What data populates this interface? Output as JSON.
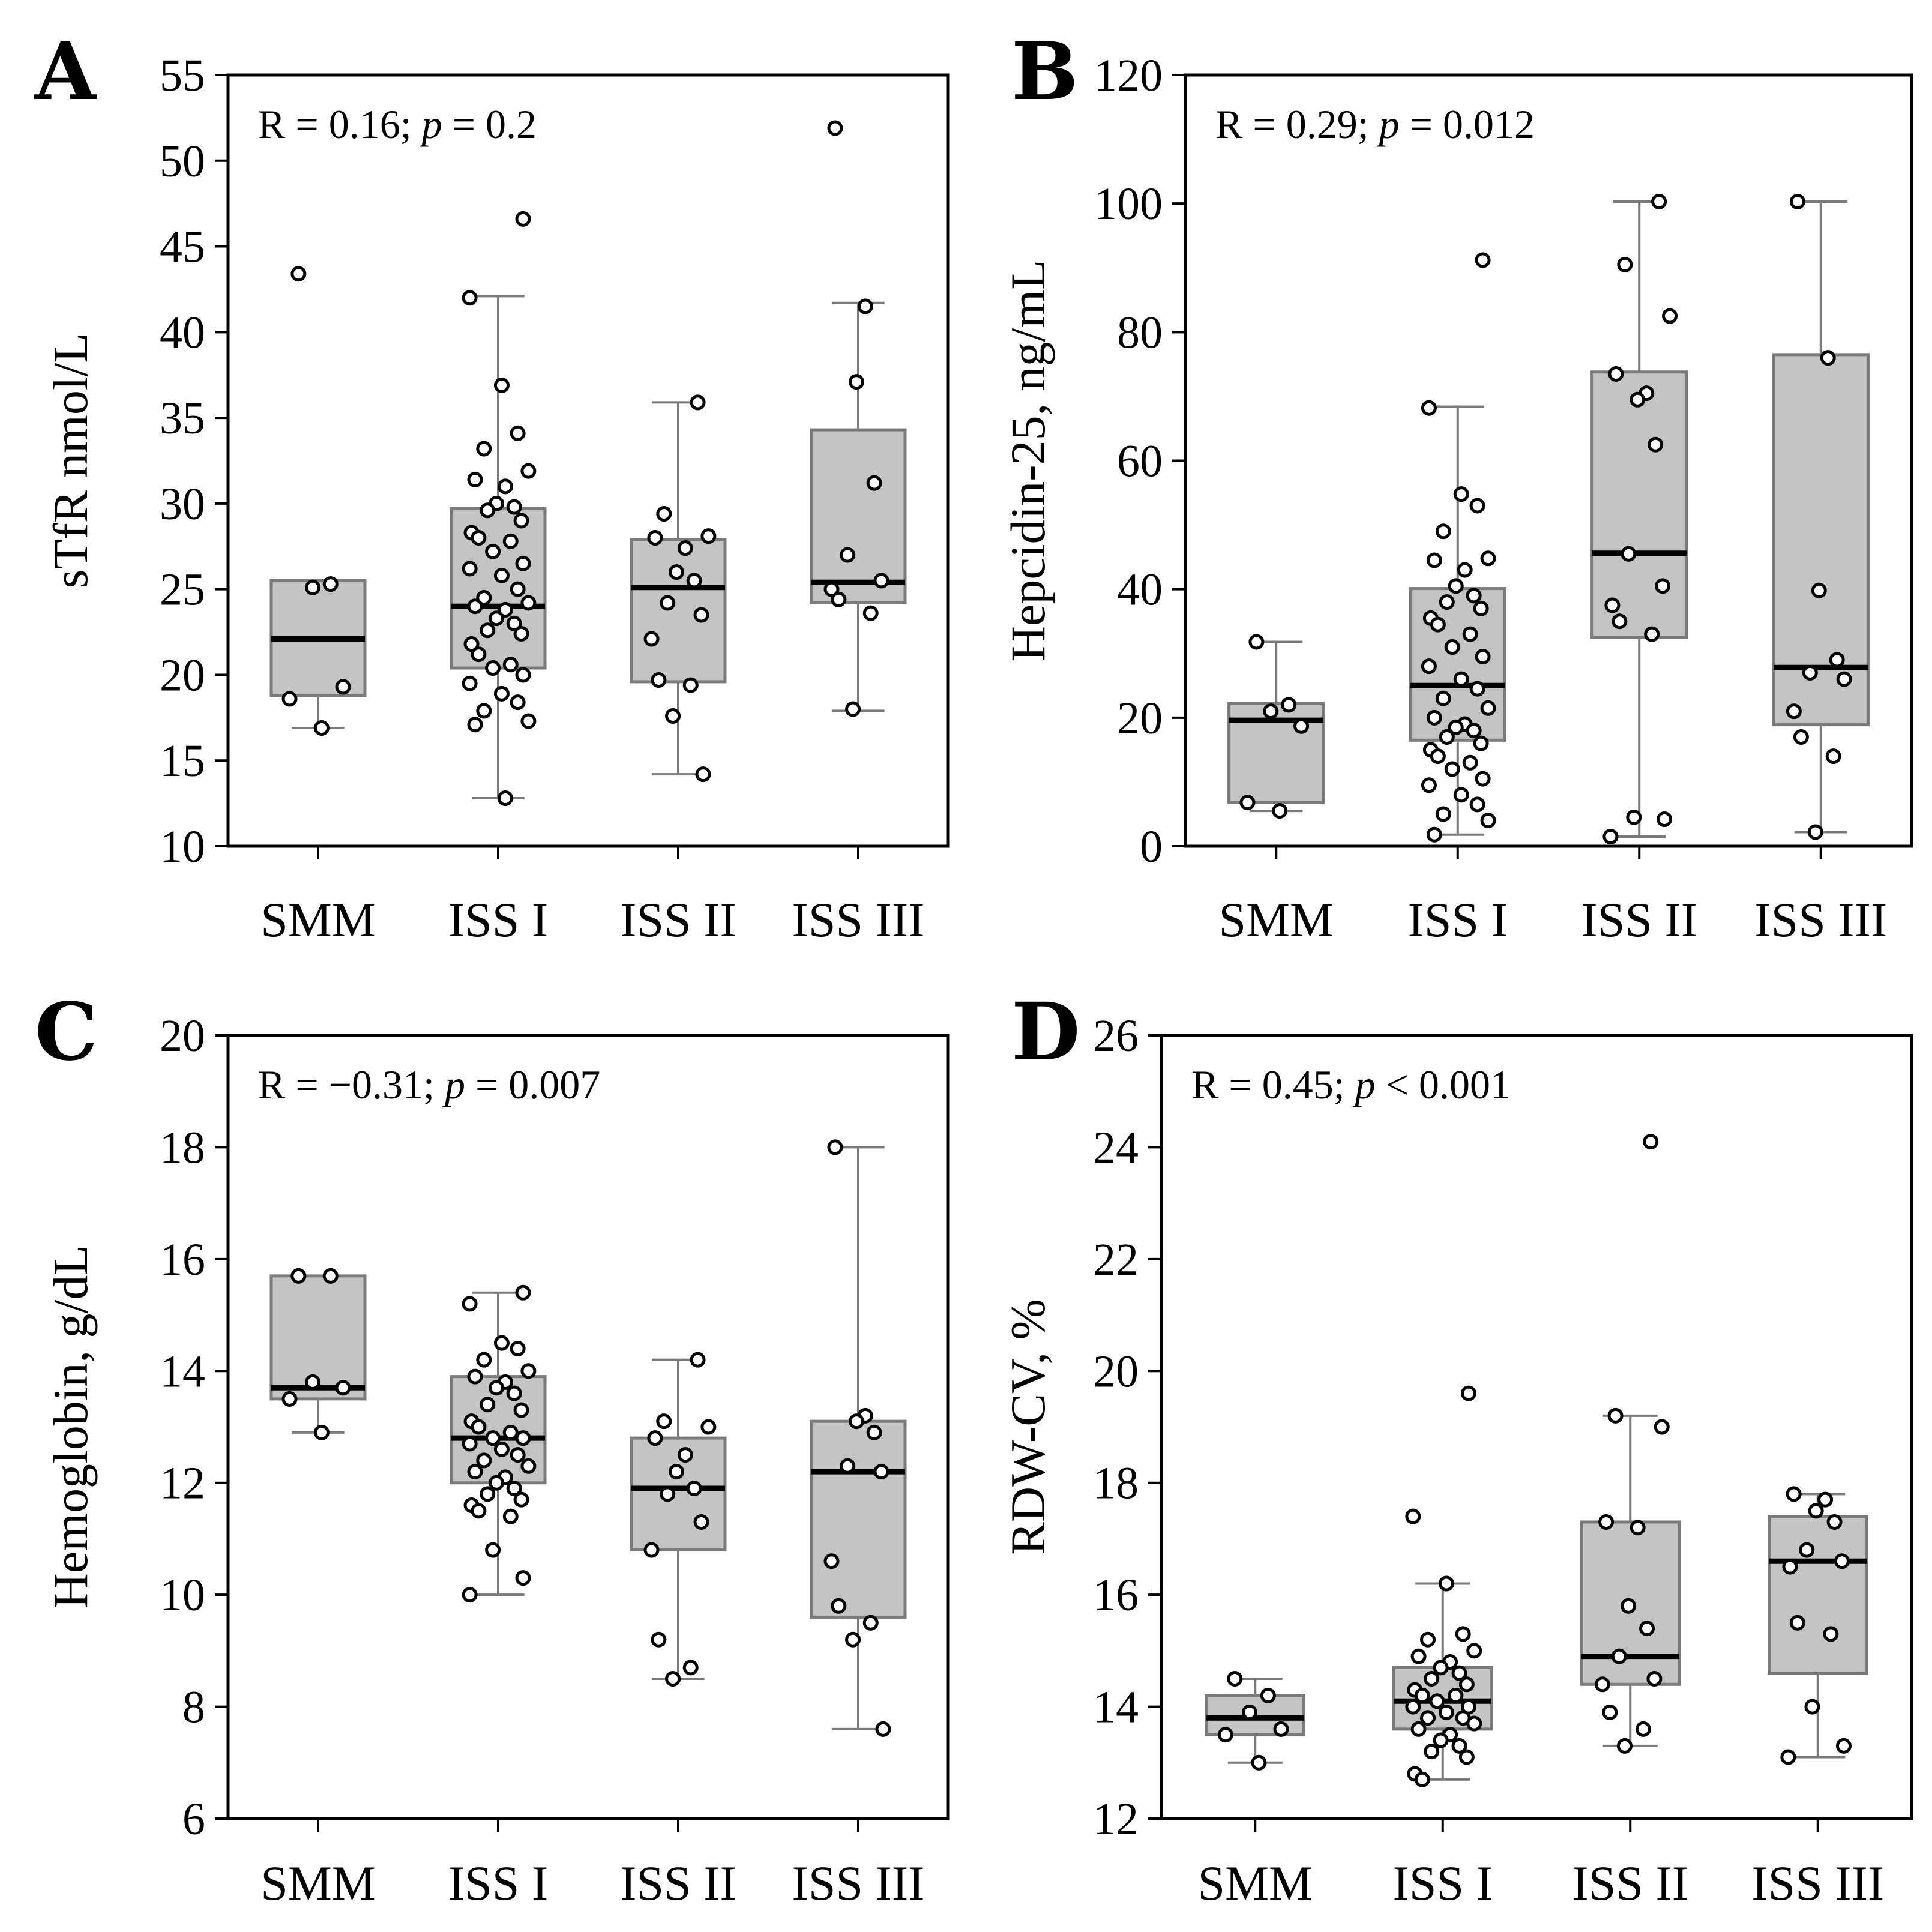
{
  "chart_data": [
    {
      "panel": "A",
      "type": "box",
      "ylabel": "sTfR nmol/L",
      "ylim": [
        10,
        55
      ],
      "yticks": [
        10,
        15,
        20,
        25,
        30,
        35,
        40,
        45,
        50,
        55
      ],
      "categories": [
        "SMM",
        "ISS I",
        "ISS II",
        "ISS III"
      ],
      "annotation": {
        "prefix": "R = 0.16; ",
        "p_symbol": "p",
        "suffix": " = 0.2"
      },
      "groups": [
        {
          "name": "SMM",
          "box": {
            "q1": 18.8,
            "median": 22.1,
            "q3": 25.5,
            "whisker_low": 16.9,
            "whisker_high": 25.5
          },
          "points": [
            43.4,
            25.3,
            25.1,
            19.3,
            18.6,
            16.9
          ]
        },
        {
          "name": "ISS I",
          "box": {
            "q1": 20.4,
            "median": 24.0,
            "q3": 29.7,
            "whisker_low": 12.8,
            "whisker_high": 42.1
          },
          "points": [
            46.6,
            42.0,
            36.9,
            34.1,
            33.2,
            31.9,
            31.4,
            31.0,
            30.0,
            29.8,
            29.6,
            29.0,
            28.3,
            28.0,
            27.8,
            27.2,
            26.5,
            26.2,
            25.8,
            25.0,
            24.5,
            24.2,
            24.0,
            23.8,
            23.3,
            23.0,
            22.6,
            22.4,
            21.8,
            21.2,
            20.6,
            20.4,
            20.0,
            19.5,
            18.9,
            18.4,
            17.9,
            17.3,
            17.1,
            12.8
          ]
        },
        {
          "name": "ISS II",
          "box": {
            "q1": 19.6,
            "median": 25.1,
            "q3": 27.9,
            "whisker_low": 14.2,
            "whisker_high": 35.9
          },
          "points": [
            35.9,
            29.4,
            28.1,
            28.0,
            27.4,
            26.0,
            25.5,
            24.2,
            23.5,
            22.1,
            19.7,
            19.4,
            17.6,
            14.2
          ]
        },
        {
          "name": "ISS III",
          "box": {
            "q1": 24.2,
            "median": 25.4,
            "q3": 34.3,
            "whisker_low": 17.9,
            "whisker_high": 41.7
          },
          "points": [
            51.9,
            41.5,
            37.1,
            31.2,
            27.0,
            25.5,
            25.0,
            24.4,
            23.6,
            18.0
          ]
        }
      ]
    },
    {
      "panel": "B",
      "type": "box",
      "ylabel": "Hepcidin-25, ng/mL",
      "ylim": [
        0,
        120
      ],
      "yticks": [
        0,
        20,
        40,
        60,
        80,
        100,
        120
      ],
      "categories": [
        "SMM",
        "ISS I",
        "ISS II",
        "ISS III"
      ],
      "annotation": {
        "prefix": "R = 0.29; ",
        "p_symbol": "p",
        "suffix": " = 0.012"
      },
      "groups": [
        {
          "name": "SMM",
          "box": {
            "q1": 6.8,
            "median": 19.6,
            "q3": 22.2,
            "whisker_low": 5.5,
            "whisker_high": 31.8
          },
          "points": [
            31.8,
            22.0,
            21.0,
            18.7,
            6.8,
            5.5
          ]
        },
        {
          "name": "ISS I",
          "box": {
            "q1": 16.5,
            "median": 25.0,
            "q3": 40.1,
            "whisker_low": 1.8,
            "whisker_high": 68.4
          },
          "points": [
            91.2,
            68.2,
            54.8,
            53.0,
            49.0,
            44.8,
            44.5,
            43.0,
            40.5,
            39.0,
            38.0,
            37.0,
            35.5,
            34.5,
            33.0,
            31.0,
            29.5,
            28.0,
            26.0,
            24.5,
            23.0,
            21.5,
            20.0,
            19.0,
            18.5,
            18.0,
            17.0,
            16.0,
            15.0,
            14.0,
            13.0,
            12.0,
            10.5,
            9.5,
            8.0,
            6.5,
            5.0,
            4.0,
            1.8
          ]
        },
        {
          "name": "ISS II",
          "box": {
            "q1": 32.5,
            "median": 45.6,
            "q3": 73.8,
            "whisker_low": 1.5,
            "whisker_high": 100.3
          },
          "points": [
            100.3,
            90.5,
            82.5,
            73.5,
            70.5,
            69.5,
            62.5,
            45.5,
            40.5,
            37.5,
            35.0,
            33.0,
            4.5,
            4.2,
            1.5
          ]
        },
        {
          "name": "ISS III",
          "box": {
            "q1": 18.9,
            "median": 27.8,
            "q3": 76.5,
            "whisker_low": 2.2,
            "whisker_high": 100.3
          },
          "points": [
            100.3,
            76.0,
            39.8,
            29.0,
            27.0,
            26.0,
            21.0,
            17.0,
            14.0,
            2.2
          ]
        }
      ]
    },
    {
      "panel": "C",
      "type": "box",
      "ylabel": "Hemoglobin, g/dL",
      "ylim": [
        6,
        20
      ],
      "yticks": [
        6,
        8,
        10,
        12,
        14,
        16,
        18,
        20
      ],
      "categories": [
        "SMM",
        "ISS I",
        "ISS II",
        "ISS III"
      ],
      "annotation": {
        "prefix": "R = −0.31; ",
        "p_symbol": "p",
        "suffix": " = 0.007"
      },
      "groups": [
        {
          "name": "SMM",
          "box": {
            "q1": 13.5,
            "median": 13.7,
            "q3": 15.7,
            "whisker_low": 12.9,
            "whisker_high": 15.7
          },
          "points": [
            15.7,
            15.7,
            13.8,
            13.7,
            13.5,
            12.9
          ]
        },
        {
          "name": "ISS I",
          "box": {
            "q1": 12.0,
            "median": 12.8,
            "q3": 13.9,
            "whisker_low": 10.0,
            "whisker_high": 15.4
          },
          "points": [
            15.4,
            15.2,
            14.5,
            14.4,
            14.2,
            14.0,
            13.9,
            13.8,
            13.7,
            13.6,
            13.4,
            13.3,
            13.1,
            13.0,
            12.9,
            12.8,
            12.8,
            12.7,
            12.6,
            12.5,
            12.4,
            12.3,
            12.2,
            12.1,
            12.0,
            11.9,
            11.8,
            11.7,
            11.6,
            11.5,
            11.4,
            10.8,
            10.3,
            10.0
          ]
        },
        {
          "name": "ISS II",
          "box": {
            "q1": 10.8,
            "median": 11.9,
            "q3": 12.8,
            "whisker_low": 8.5,
            "whisker_high": 14.2
          },
          "points": [
            14.2,
            13.1,
            13.0,
            12.8,
            12.5,
            12.2,
            11.9,
            11.8,
            11.3,
            10.8,
            9.2,
            8.7,
            8.5
          ]
        },
        {
          "name": "ISS III",
          "box": {
            "q1": 9.6,
            "median": 12.2,
            "q3": 13.1,
            "whisker_low": 7.6,
            "whisker_high": 18.0
          },
          "points": [
            18.0,
            13.2,
            13.1,
            12.9,
            12.3,
            12.2,
            10.6,
            9.8,
            9.5,
            9.2,
            7.6
          ]
        }
      ]
    },
    {
      "panel": "D",
      "type": "box",
      "ylabel": "RDW-CV, %",
      "ylim": [
        12,
        26
      ],
      "yticks": [
        12,
        14,
        16,
        18,
        20,
        22,
        24,
        26
      ],
      "categories": [
        "SMM",
        "ISS I",
        "ISS II",
        "ISS III"
      ],
      "annotation": {
        "prefix": "R = 0.45; ",
        "p_symbol": "p",
        "suffix": " < 0.001"
      },
      "groups": [
        {
          "name": "SMM",
          "box": {
            "q1": 13.5,
            "median": 13.8,
            "q3": 14.2,
            "whisker_low": 13.0,
            "whisker_high": 14.5
          },
          "points": [
            14.5,
            14.2,
            13.9,
            13.6,
            13.5,
            13.0
          ]
        },
        {
          "name": "ISS I",
          "box": {
            "q1": 13.6,
            "median": 14.1,
            "q3": 14.7,
            "whisker_low": 12.7,
            "whisker_high": 16.2
          },
          "points": [
            19.6,
            17.4,
            16.2,
            15.3,
            15.2,
            15.0,
            14.9,
            14.8,
            14.7,
            14.6,
            14.5,
            14.4,
            14.3,
            14.2,
            14.2,
            14.1,
            14.0,
            14.0,
            13.9,
            13.8,
            13.8,
            13.7,
            13.6,
            13.5,
            13.4,
            13.3,
            13.2,
            13.1,
            12.8,
            12.7
          ]
        },
        {
          "name": "ISS II",
          "box": {
            "q1": 14.4,
            "median": 14.9,
            "q3": 17.3,
            "whisker_low": 13.3,
            "whisker_high": 19.2
          },
          "points": [
            24.1,
            19.2,
            19.0,
            17.3,
            17.2,
            15.8,
            15.4,
            14.9,
            14.5,
            14.4,
            13.9,
            13.6,
            13.3
          ]
        },
        {
          "name": "ISS III",
          "box": {
            "q1": 14.6,
            "median": 16.6,
            "q3": 17.4,
            "whisker_low": 13.1,
            "whisker_high": 17.8
          },
          "points": [
            17.8,
            17.7,
            17.5,
            17.3,
            16.8,
            16.6,
            16.5,
            15.5,
            15.3,
            14.0,
            13.3,
            13.1
          ]
        }
      ]
    }
  ]
}
